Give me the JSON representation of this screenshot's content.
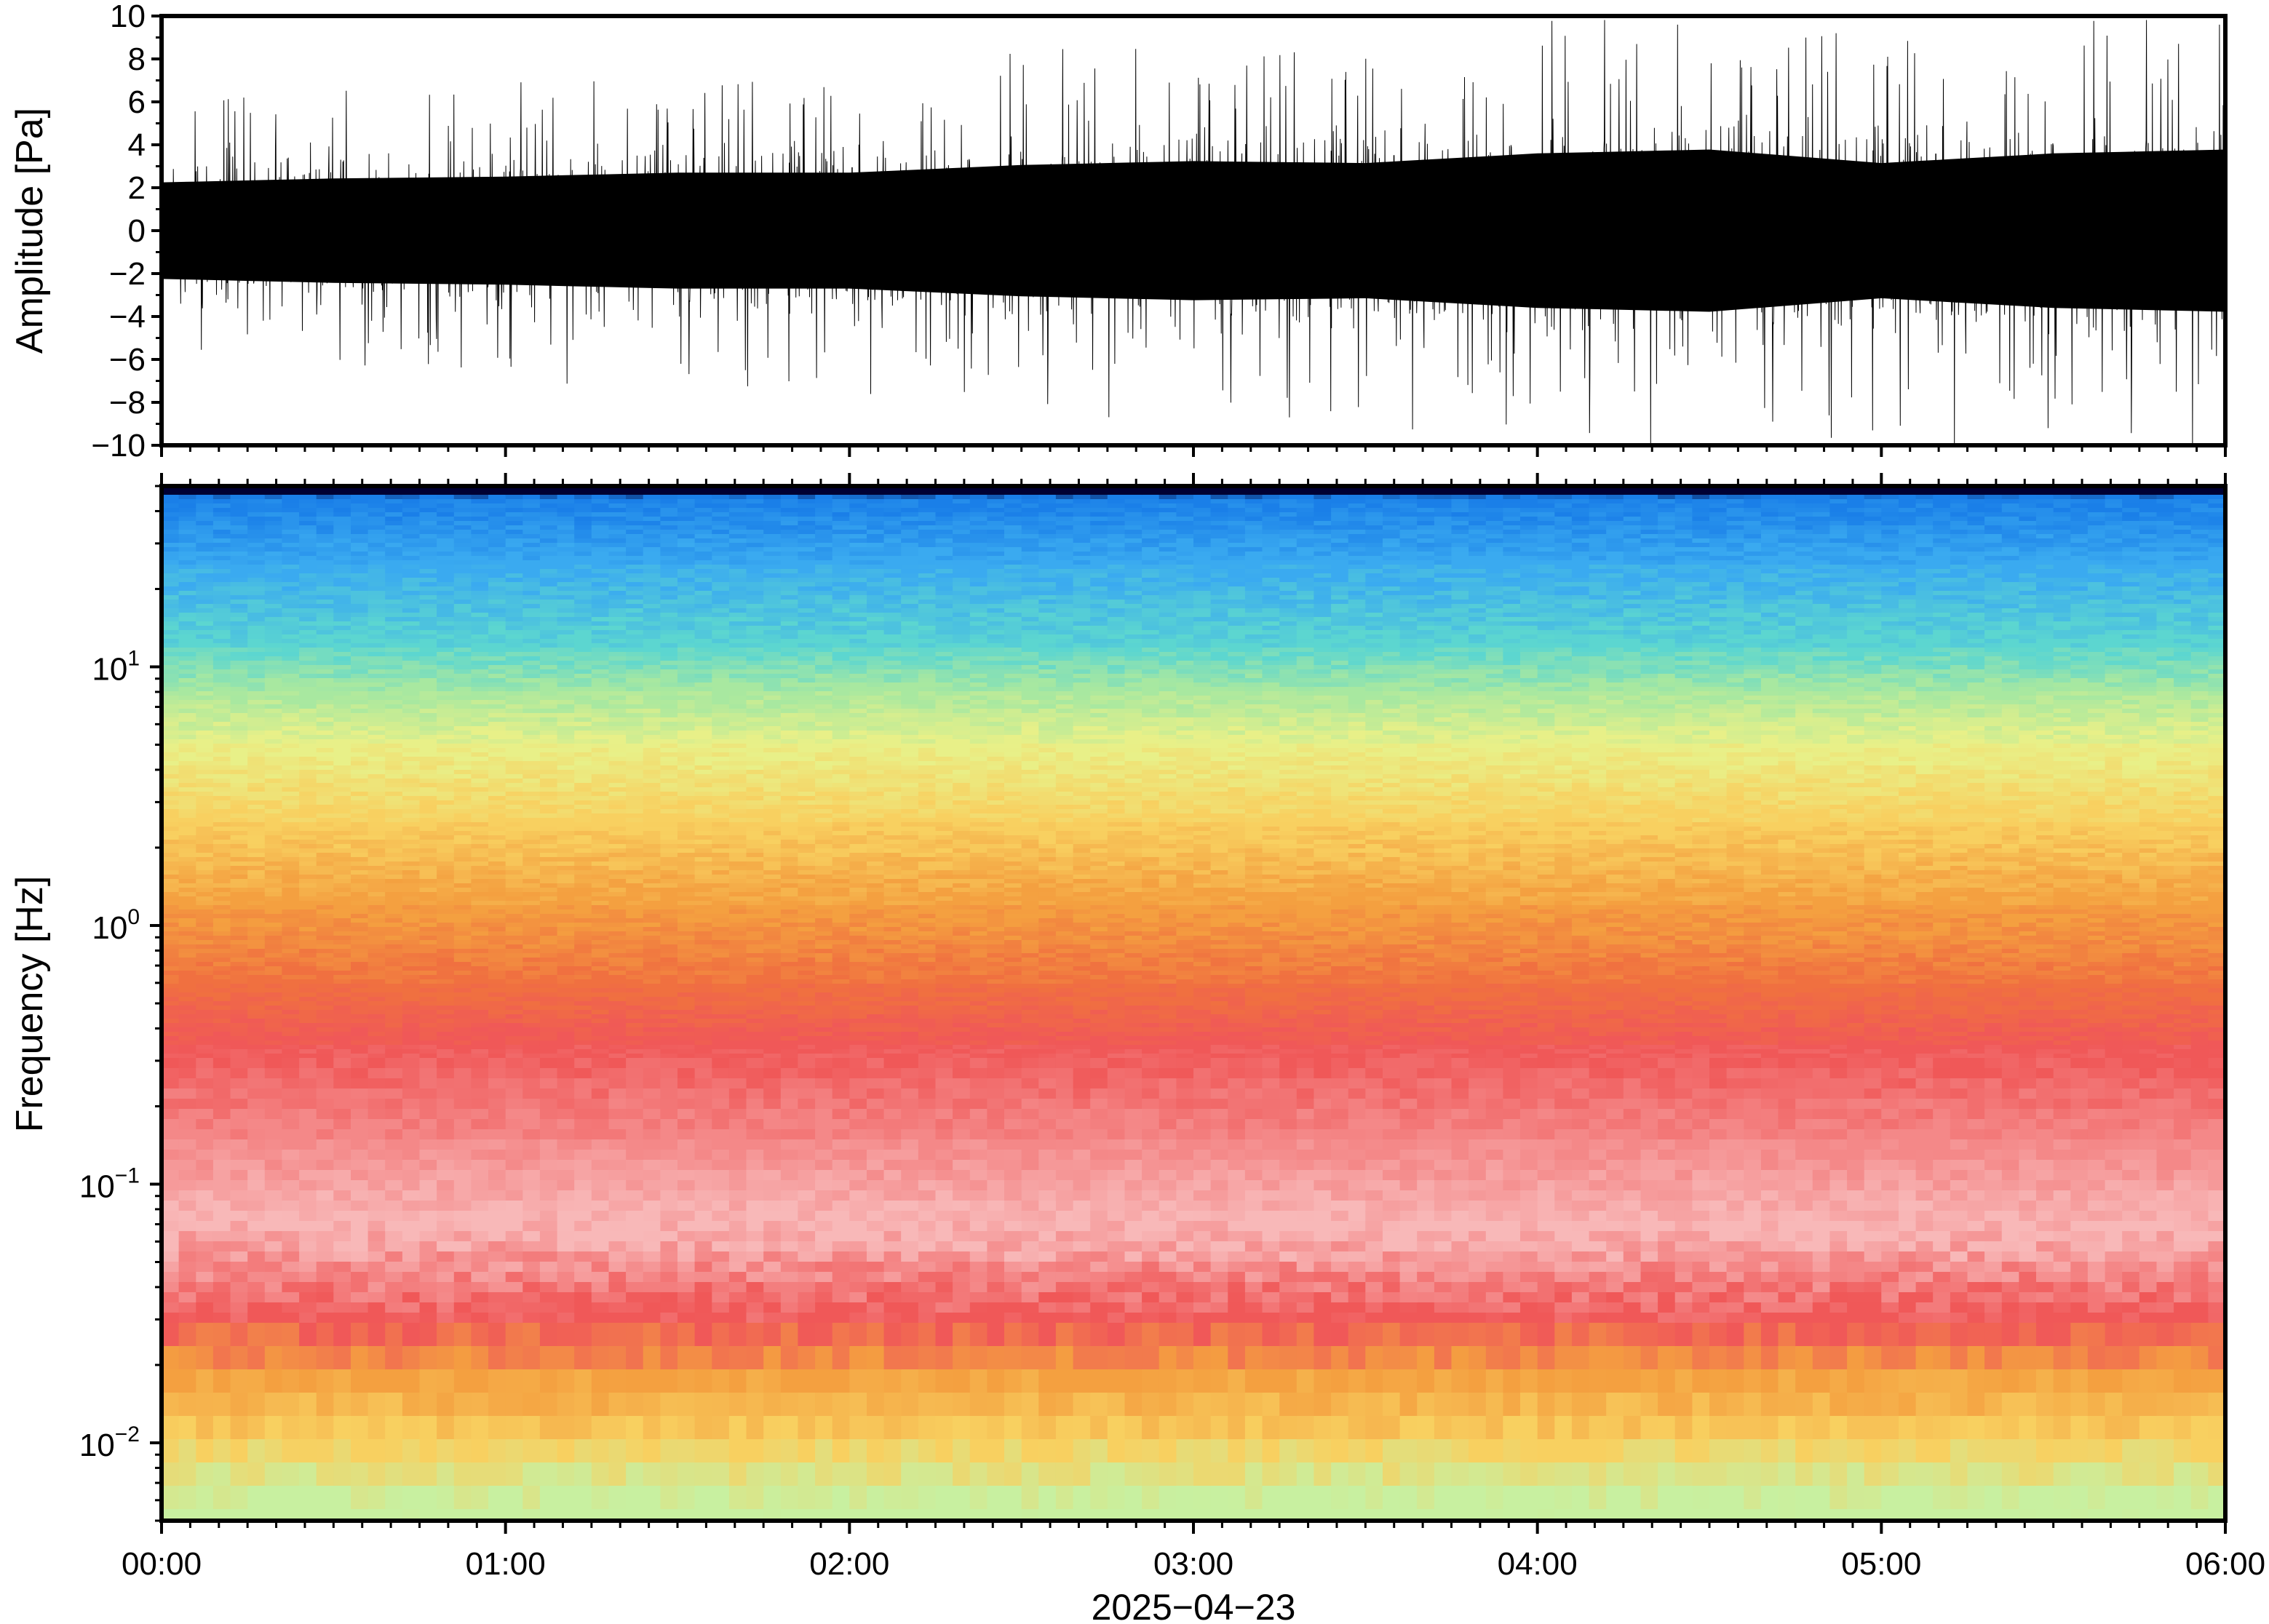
{
  "chart_data": [
    {
      "type": "line",
      "panel": "waveform",
      "ylabel": "Amplitude [Pa]",
      "ylim": [
        -10,
        10
      ],
      "yticks": [
        "10",
        "8",
        "6",
        "4",
        "2",
        "0",
        "−2",
        "−4",
        "−6",
        "−8",
        "−10"
      ],
      "xlim": [
        "00:00",
        "06:00"
      ],
      "series": [
        {
          "color": "#000000",
          "envelope_x_hours": [
            0,
            0.5,
            1,
            1.5,
            2,
            2.5,
            3,
            3.5,
            4,
            4.5,
            5,
            5.5,
            6
          ],
          "core_amplitude": [
            2.5,
            2.7,
            2.8,
            3.0,
            3.0,
            3.4,
            3.6,
            3.5,
            4.0,
            4.2,
            3.5,
            4.0,
            4.2
          ],
          "peak_amplitude": [
            6,
            6.5,
            7,
            7.5,
            7.5,
            8.5,
            9,
            9,
            10,
            10,
            10,
            10,
            10
          ]
        }
      ]
    },
    {
      "type": "heatmap",
      "panel": "spectrogram",
      "ylabel": "Frequency [Hz]",
      "yscale": "log",
      "ylim": [
        0.005,
        50
      ],
      "yticks": [
        {
          "value": 10,
          "base": "10",
          "exp": "1"
        },
        {
          "value": 1,
          "base": "10",
          "exp": "0"
        },
        {
          "value": 0.1,
          "base": "10",
          "exp": "−1"
        },
        {
          "value": 0.01,
          "base": "10",
          "exp": "−2"
        }
      ],
      "xlim": [
        "00:00",
        "06:00"
      ],
      "xticks": [
        "00:00",
        "01:00",
        "02:00",
        "03:00",
        "04:00",
        "05:00",
        "06:00"
      ],
      "xlabel": "2025−04−23",
      "colormap": [
        "#000033",
        "#0a2fa0",
        "#1a7fe8",
        "#3aaaf0",
        "#5cd6d0",
        "#a8e8a0",
        "#e8f088",
        "#f8d060",
        "#f4a040",
        "#f07040",
        "#f05858",
        "#f48888",
        "#f8b8b8",
        "#fbe0e0"
      ],
      "approx_level_profile": [
        {
          "freq_hz": 50,
          "color": "#000033"
        },
        {
          "freq_hz": 45,
          "color": "#1a7fe8"
        },
        {
          "freq_hz": 25,
          "color": "#3aaaf0"
        },
        {
          "freq_hz": 12,
          "color": "#5cd6d0"
        },
        {
          "freq_hz": 8,
          "color": "#a8e8a0"
        },
        {
          "freq_hz": 5,
          "color": "#e8f088"
        },
        {
          "freq_hz": 2.5,
          "color": "#f8d060"
        },
        {
          "freq_hz": 1.2,
          "color": "#f4a040"
        },
        {
          "freq_hz": 0.6,
          "color": "#f07040"
        },
        {
          "freq_hz": 0.35,
          "color": "#f05858"
        },
        {
          "freq_hz": 0.15,
          "color": "#f48888"
        },
        {
          "freq_hz": 0.07,
          "color": "#f8b8b8"
        },
        {
          "freq_hz": 0.03,
          "color": "#f05858"
        },
        {
          "freq_hz": 0.018,
          "color": "#f4a040"
        },
        {
          "freq_hz": 0.01,
          "color": "#f8d060"
        },
        {
          "freq_hz": 0.006,
          "color": "#c8f0a0"
        }
      ]
    }
  ]
}
